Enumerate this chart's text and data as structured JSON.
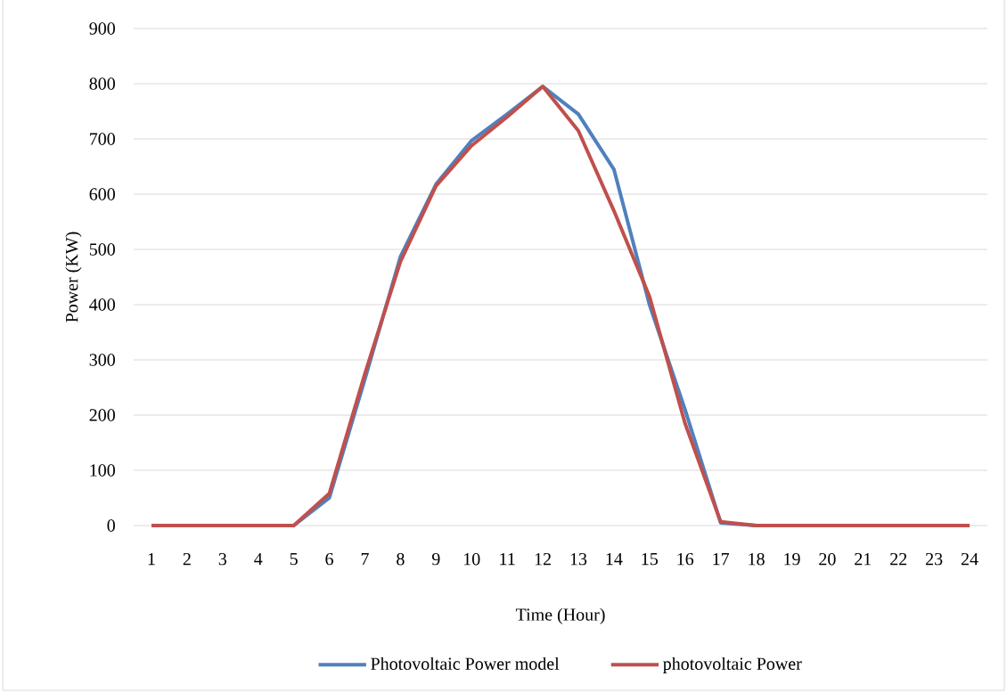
{
  "chart_data": {
    "type": "line",
    "xlabel": "Time (Hour)",
    "ylabel": "Power (KW)",
    "categories": [
      "1",
      "2",
      "3",
      "4",
      "5",
      "6",
      "7",
      "8",
      "9",
      "10",
      "11",
      "12",
      "13",
      "14",
      "15",
      "16",
      "17",
      "18",
      "19",
      "20",
      "21",
      "22",
      "23",
      "24"
    ],
    "series": [
      {
        "name": "Photovoltaic Power model",
        "color": "#4f81bd",
        "values": [
          null,
          null,
          null,
          0,
          0,
          50,
          265,
          487,
          618,
          697,
          745,
          795,
          745,
          645,
          400,
          210,
          5,
          0,
          0,
          null,
          null,
          null,
          null,
          null
        ]
      },
      {
        "name": "photovoltaic Power",
        "color": "#c0504d",
        "values": [
          0,
          0,
          0,
          0,
          0,
          58,
          275,
          478,
          615,
          688,
          740,
          795,
          715,
          570,
          415,
          185,
          7,
          0,
          0,
          0,
          0,
          0,
          0,
          0
        ]
      }
    ],
    "ylim": [
      0,
      900
    ],
    "yticks": [
      0,
      100,
      200,
      300,
      400,
      500,
      600,
      700,
      800,
      900
    ],
    "grid": "y",
    "legend": "bottom"
  }
}
